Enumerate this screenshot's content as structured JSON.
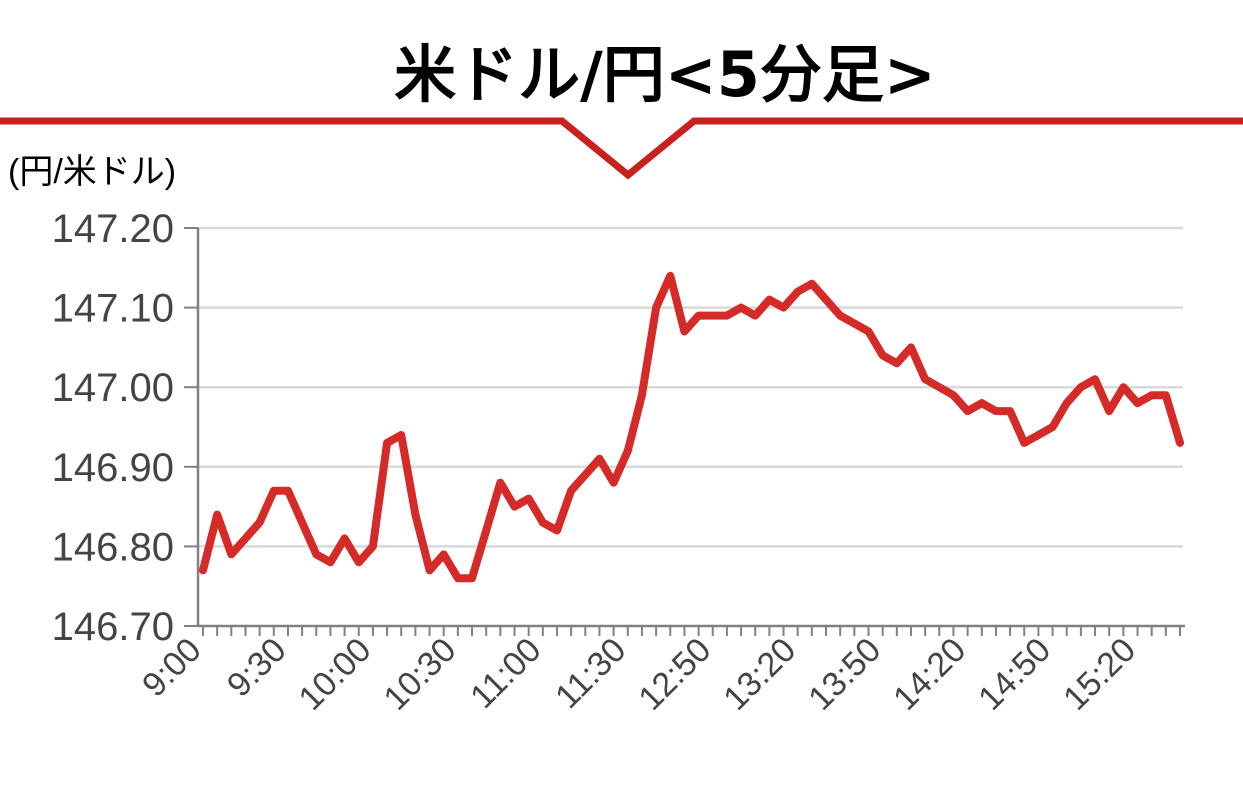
{
  "chart_data": {
    "type": "line",
    "title": "米ドル/円<5分足>",
    "ylabel": "(円/米ドル)",
    "xlabel": "",
    "ylim": [
      146.7,
      147.2
    ],
    "yticks": [
      "147.20",
      "147.10",
      "147.00",
      "146.90",
      "146.80",
      "146.70"
    ],
    "xtick_labels": [
      "9:00",
      "9:30",
      "10:00",
      "10:30",
      "11:00",
      "11:30",
      "12:50",
      "13:20",
      "13:50",
      "14:20",
      "14:50",
      "15:20"
    ],
    "grid": true,
    "line_color": "#d42a28",
    "series": [
      {
        "values": [
          146.77,
          146.84,
          146.79,
          146.81,
          146.83,
          146.87,
          146.87,
          146.83,
          146.79,
          146.78,
          146.81,
          146.78,
          146.8,
          146.93,
          146.94,
          146.84,
          146.77,
          146.79,
          146.76,
          146.76,
          146.82,
          146.88,
          146.85,
          146.86,
          146.83,
          146.82,
          146.87,
          146.89,
          146.91,
          146.88,
          146.92,
          146.99,
          147.1,
          147.14,
          147.07,
          147.09,
          147.09,
          147.09,
          147.1,
          147.09,
          147.11,
          147.1,
          147.12,
          147.13,
          147.11,
          147.09,
          147.08,
          147.07,
          147.04,
          147.03,
          147.05,
          147.01,
          147.0,
          146.99,
          146.97,
          146.98,
          146.97,
          146.97,
          146.93,
          146.94,
          146.95,
          146.98,
          147.0,
          147.01,
          146.97,
          147.0,
          146.98,
          146.99,
          146.99,
          146.93
        ]
      }
    ]
  }
}
